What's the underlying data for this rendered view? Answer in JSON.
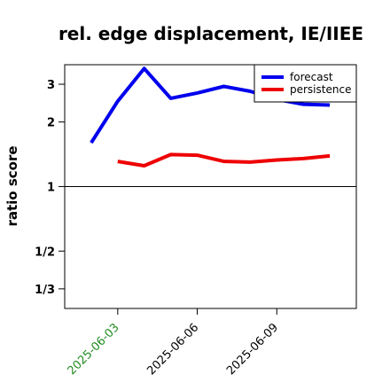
{
  "chart_data": {
    "type": "line",
    "title": "rel. edge displacement, IE/IIEE",
    "xlabel": "",
    "ylabel": "ratio score",
    "y_scale": "log",
    "ylim": [
      0.27,
      3.7
    ],
    "xlim": [
      "2025-06-01",
      "2025-06-12"
    ],
    "reference_line": 1,
    "yticks": [
      {
        "value": 0.3333,
        "label": "1/3"
      },
      {
        "value": 0.5,
        "label": "1/2"
      },
      {
        "value": 1,
        "label": "1"
      },
      {
        "value": 2,
        "label": "2"
      },
      {
        "value": 3,
        "label": "3"
      }
    ],
    "xticks": [
      {
        "date": "2025-06-03",
        "label": "2025-06-03",
        "color": "#228B22"
      },
      {
        "date": "2025-06-06",
        "label": "2025-06-06",
        "color": "#000000"
      },
      {
        "date": "2025-06-09",
        "label": "2025-06-09",
        "color": "#000000"
      }
    ],
    "legend_position": "top-right",
    "series": [
      {
        "name": "forecast",
        "color": "#0000ee",
        "points": [
          [
            "2025-06-02",
            1.6
          ],
          [
            "2025-06-03",
            2.5
          ],
          [
            "2025-06-04",
            3.55
          ],
          [
            "2025-06-05",
            2.58
          ],
          [
            "2025-06-06",
            2.73
          ],
          [
            "2025-06-07",
            2.93
          ],
          [
            "2025-06-08",
            2.78
          ],
          [
            "2025-06-09",
            2.55
          ],
          [
            "2025-06-10",
            2.42
          ],
          [
            "2025-06-11",
            2.4
          ]
        ]
      },
      {
        "name": "persistence",
        "color": "#ee0000",
        "points": [
          [
            "2025-06-03",
            1.31
          ],
          [
            "2025-06-04",
            1.25
          ],
          [
            "2025-06-05",
            1.41
          ],
          [
            "2025-06-06",
            1.4
          ],
          [
            "2025-06-07",
            1.31
          ],
          [
            "2025-06-08",
            1.3
          ],
          [
            "2025-06-09",
            1.33
          ],
          [
            "2025-06-10",
            1.35
          ],
          [
            "2025-06-11",
            1.39
          ]
        ]
      }
    ]
  }
}
